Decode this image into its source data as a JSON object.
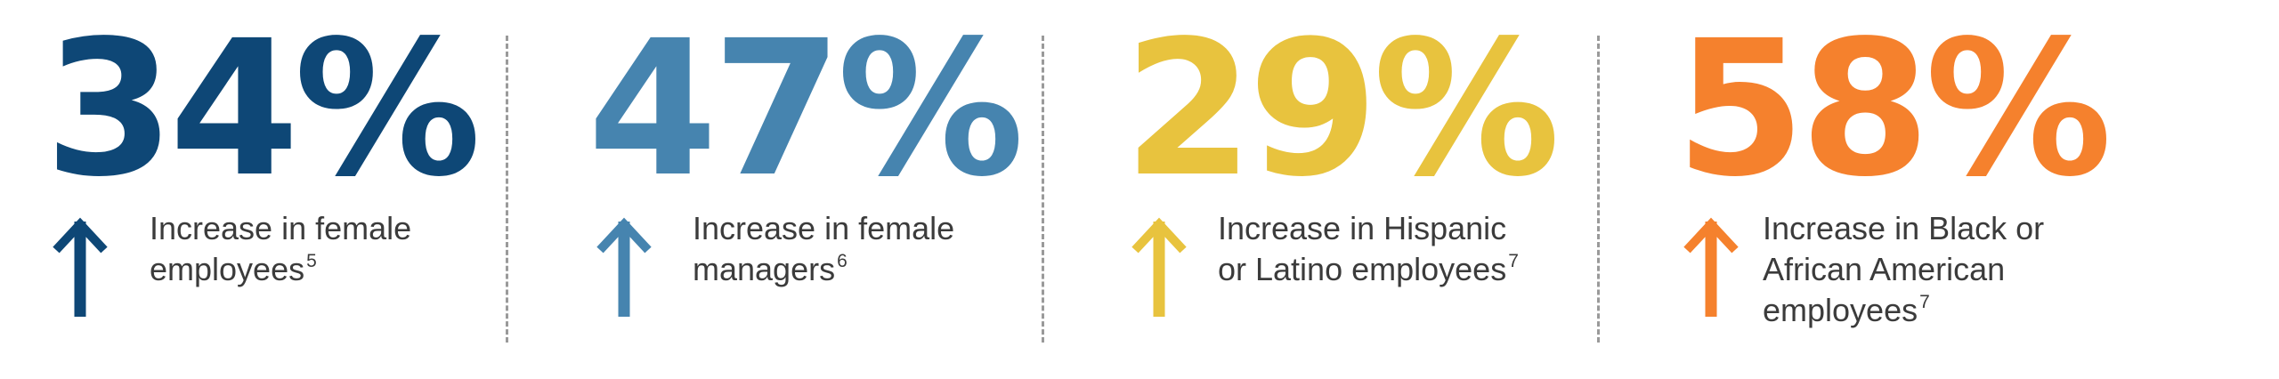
{
  "stats": [
    {
      "value": "34%",
      "color": "#0e4776",
      "icon": "up-arrow-icon",
      "lines": [
        "Increase in female",
        "employees"
      ],
      "footnote": "5"
    },
    {
      "value": "47%",
      "color": "#4684af",
      "icon": "up-arrow-icon",
      "lines": [
        "Increase in female",
        "managers"
      ],
      "footnote": "6"
    },
    {
      "value": "29%",
      "color": "#e8c33e",
      "icon": "up-arrow-icon",
      "lines": [
        "Increase in Hispanic",
        "or Latino employees"
      ],
      "footnote": "7"
    },
    {
      "value": "58%",
      "color": "#f5812d",
      "icon": "up-arrow-icon",
      "lines": [
        "Increase in Black or",
        "African American",
        "employees"
      ],
      "footnote": "7"
    }
  ]
}
